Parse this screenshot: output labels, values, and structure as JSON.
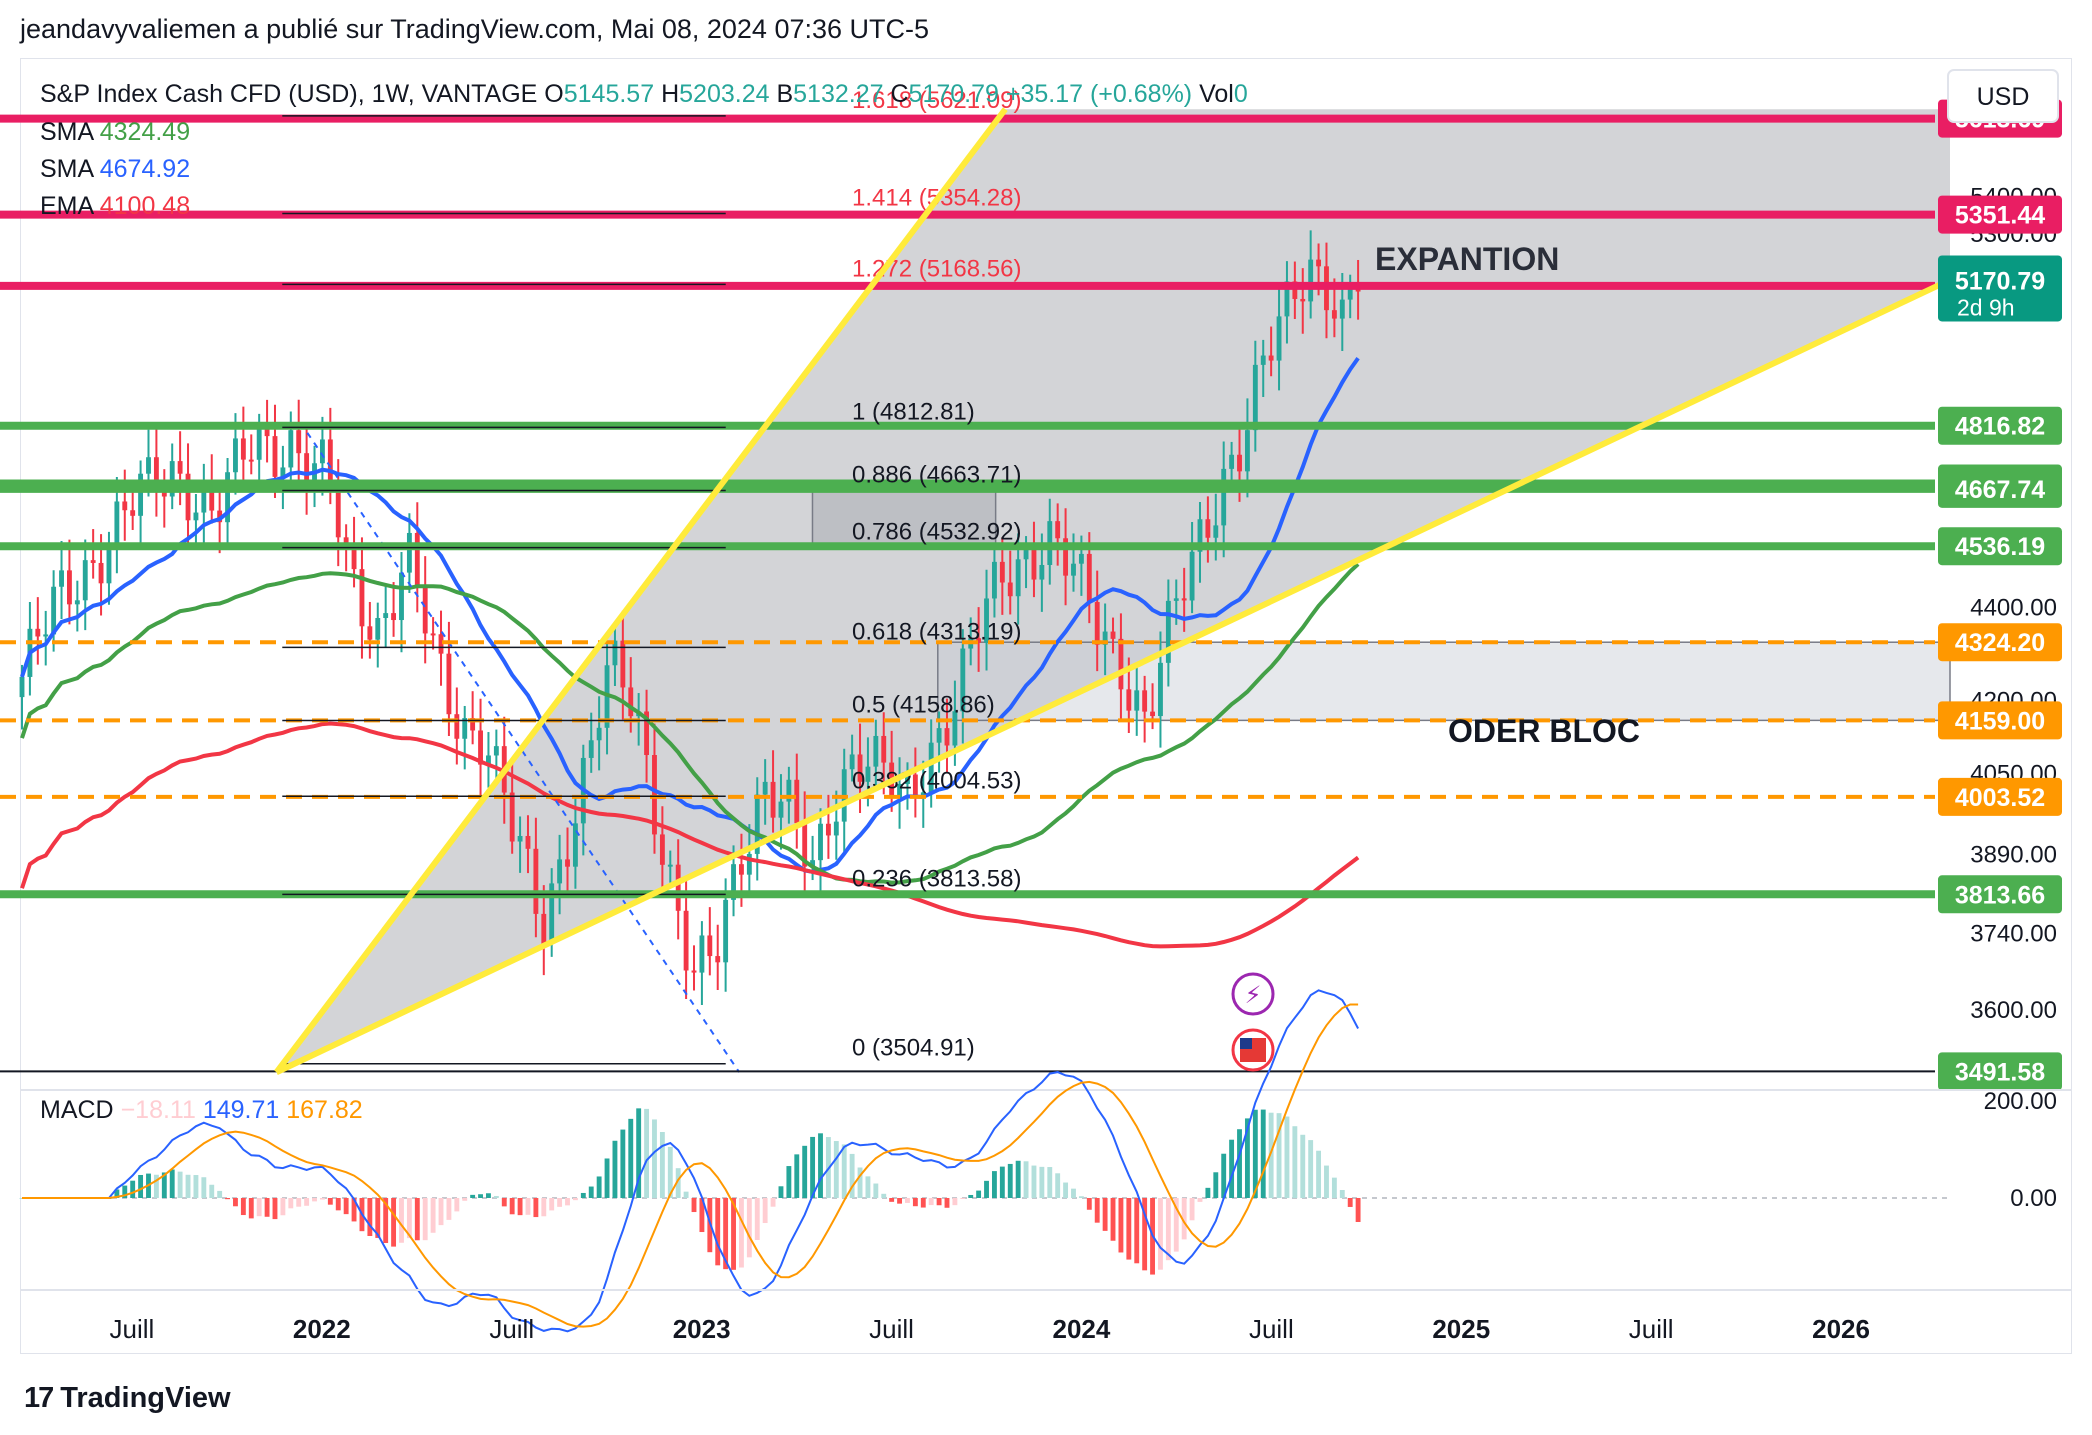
{
  "header": {
    "published": "jeandavyvaliemen a publié sur TradingView.com, Mai 08, 2024 07:36 UTC-5"
  },
  "legend": {
    "symbol": "S&P Index Cash CFD (USD), 1W, VANTAGE",
    "o_label": "O",
    "o": "5145.57",
    "h_label": "H",
    "h": "5203.24",
    "b_label": "B",
    "b": "5132.27",
    "c_label": "C",
    "c": "5170.79",
    "chg": "+35.17 (+0.68%)",
    "vol_label": "Vol",
    "vol": "0",
    "indicators": [
      {
        "name": "SMA",
        "value": "4324.49",
        "color": "#43a047"
      },
      {
        "name": "SMA",
        "value": "4674.92",
        "color": "#2962ff"
      },
      {
        "name": "EMA",
        "value": "4100.48",
        "color": "#f23645"
      }
    ]
  },
  "currency_button": "USD",
  "macd": {
    "name": "MACD",
    "hist": "−18.11",
    "macd": "149.71",
    "signal": "167.82"
  },
  "logo_text": "TradingView",
  "colors": {
    "up": "#26a69a",
    "down": "#f23645",
    "green": "#4caf50",
    "magenta": "#e91e63",
    "orange": "#ff9800",
    "yellow": "#ffeb3b",
    "sma_blue": "#2962ff",
    "sma_green": "#43a047",
    "ema_red": "#f23645"
  },
  "chart_data": {
    "type": "candlestick",
    "timeframe": "1W",
    "ylim": [
      3480,
      5780
    ],
    "price_scale_log": true,
    "x_ticks": [
      "Juill",
      "2022",
      "Juill",
      "2023",
      "Juill",
      "2024",
      "Juill",
      "2025",
      "Juill",
      "2026"
    ],
    "y_ticks": [
      "5400.00",
      "5300.00",
      "4400.00",
      "4200.00",
      "4050.00",
      "3890.00",
      "3740.00",
      "3600.00"
    ],
    "last_price": {
      "value": "5170.79",
      "countdown": "2d 9h"
    },
    "fib_levels": [
      {
        "ratio": "1.618",
        "price": "5621.09",
        "label": "1.618 (5621.09)"
      },
      {
        "ratio": "1.414",
        "price": "5354.28",
        "label": "1.414 (5354.28)"
      },
      {
        "ratio": "1.272",
        "price": "5168.56",
        "label": "1.272 (5168.56)"
      },
      {
        "ratio": "1",
        "price": "4812.81",
        "label": "1 (4812.81)"
      },
      {
        "ratio": "0.886",
        "price": "4663.71",
        "label": "0.886 (4663.71)"
      },
      {
        "ratio": "0.786",
        "price": "4532.92",
        "label": "0.786 (4532.92)"
      },
      {
        "ratio": "0.618",
        "price": "4313.19",
        "label": "0.618 (4313.19)"
      },
      {
        "ratio": "0.5",
        "price": "4158.86",
        "label": "0.5 (4158.86)"
      },
      {
        "ratio": "0.382",
        "price": "4004.53",
        "label": "0.382 (4004.53)"
      },
      {
        "ratio": "0.236",
        "price": "3813.58",
        "label": "0.236 (3813.58)"
      },
      {
        "ratio": "0",
        "price": "3504.91",
        "label": "0 (3504.91)"
      }
    ],
    "horizontal_levels": [
      {
        "price": 5613.69,
        "label": "5613.69",
        "color": "#e91e63",
        "style": "solid"
      },
      {
        "price": 5351.44,
        "label": "5351.44",
        "color": "#e91e63",
        "style": "solid"
      },
      {
        "price": 5164.59,
        "label": "5164.59",
        "color": "#e91e63",
        "style": "solid"
      },
      {
        "price": 4816.82,
        "label": "4816.82",
        "color": "#4caf50",
        "style": "solid"
      },
      {
        "price": 4680.04,
        "label": "4680.04",
        "color": "#4caf50",
        "style": "solid"
      },
      {
        "price": 4667.74,
        "label": "4667.74",
        "color": "#4caf50",
        "style": "solid"
      },
      {
        "price": 4536.19,
        "label": "4536.19",
        "color": "#4caf50",
        "style": "solid"
      },
      {
        "price": 4324.2,
        "label": "4324.20",
        "color": "#ff9800",
        "style": "dashed"
      },
      {
        "price": 4159.0,
        "label": "4159.00",
        "color": "#ff9800",
        "style": "dashed"
      },
      {
        "price": 4003.52,
        "label": "4003.52",
        "color": "#ff9800",
        "style": "dashed"
      },
      {
        "price": 3813.66,
        "label": "3813.66",
        "color": "#4caf50",
        "style": "solid"
      },
      {
        "price": 3491.58,
        "label": "3491.58",
        "color": "#4caf50",
        "style": "solid"
      }
    ],
    "annotations": [
      "EXPANTION",
      "ODER BLOC"
    ],
    "macd_ticks": [
      "200.00",
      "0.00"
    ]
  }
}
